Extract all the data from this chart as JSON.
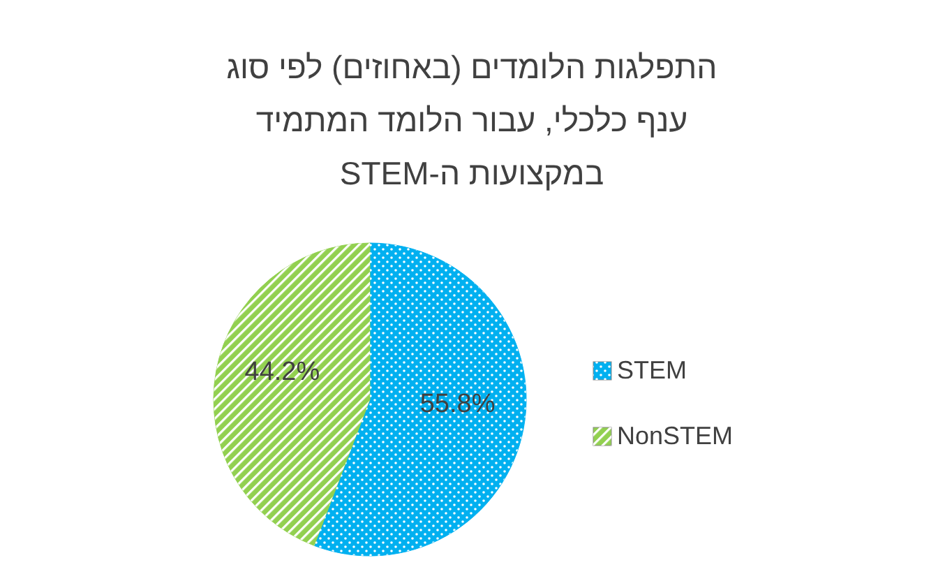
{
  "chart_data": {
    "type": "pie",
    "title": "התפלגות הלומדים (באחוזים) לפי סוג ענף כלכלי, עבור הלומד המתמיד במקצועות ה-STEM",
    "categories": [
      "STEM",
      "NonSTEM"
    ],
    "values": [
      55.8,
      44.2
    ],
    "value_labels": [
      "55.8%",
      "44.2%"
    ],
    "colors": [
      "#00b0f0",
      "#92d050"
    ],
    "legend": "right"
  }
}
